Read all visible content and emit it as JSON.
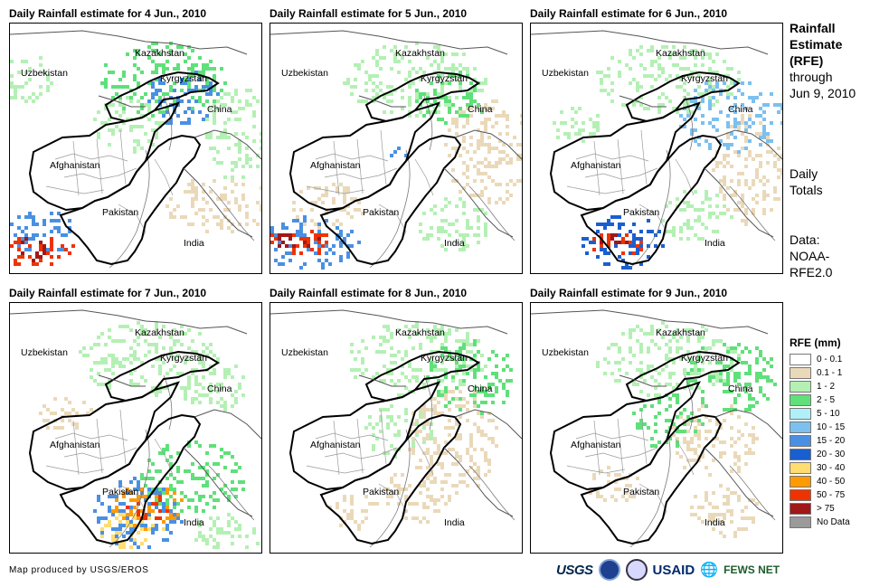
{
  "panels": [
    {
      "title": "Daily Rainfall estimate for 4 Jun., 2010"
    },
    {
      "title": "Daily Rainfall estimate for 5 Jun., 2010"
    },
    {
      "title": "Daily Rainfall estimate for 6 Jun., 2010"
    },
    {
      "title": "Daily Rainfall estimate for 7 Jun., 2010"
    },
    {
      "title": "Daily Rainfall estimate for 8 Jun., 2010"
    },
    {
      "title": "Daily Rainfall estimate for 9 Jun., 2010"
    }
  ],
  "map_labels": {
    "kazakhstan": "Kazakhstan",
    "uzbekistan": "Uzbekistan",
    "kyrgyzstan": "Kyrgyzstan",
    "china": "China",
    "afghanistan": "Afghanistan",
    "pakistan": "Pakistan",
    "india": "India"
  },
  "side": {
    "title_line1": "Rainfall",
    "title_line2": "Estimate",
    "title_line3": "(RFE)",
    "through": "through",
    "date": "Jun 9, 2010",
    "daily1": "Daily",
    "daily2": "Totals",
    "data1": "Data:",
    "data2": "NOAA-",
    "data3": "RFE2.0"
  },
  "legend": {
    "title": "RFE (mm)",
    "items": [
      {
        "label": "0 - 0.1",
        "color": "#ffffff"
      },
      {
        "label": "0.1 - 1",
        "color": "#ead9b9"
      },
      {
        "label": "1 - 2",
        "color": "#b4f0b4"
      },
      {
        "label": "2 - 5",
        "color": "#5fe07a"
      },
      {
        "label": "5 - 10",
        "color": "#b0f0f8"
      },
      {
        "label": "10 - 15",
        "color": "#7cc0ef"
      },
      {
        "label": "15 - 20",
        "color": "#4a90e2"
      },
      {
        "label": "20 - 30",
        "color": "#1a5fd0"
      },
      {
        "label": "30 - 40",
        "color": "#ffdd70"
      },
      {
        "label": "40 - 50",
        "color": "#ff9a00"
      },
      {
        "label": "50 - 75",
        "color": "#ee3300"
      },
      {
        "label": "> 75",
        "color": "#a01818"
      },
      {
        "label": "No Data",
        "color": "#9a9a9a"
      }
    ]
  },
  "footer": {
    "credit": "Map produced by USGS/EROS",
    "usgs": "USGS",
    "usaid": "USAID",
    "fews": "FEWS NET"
  }
}
